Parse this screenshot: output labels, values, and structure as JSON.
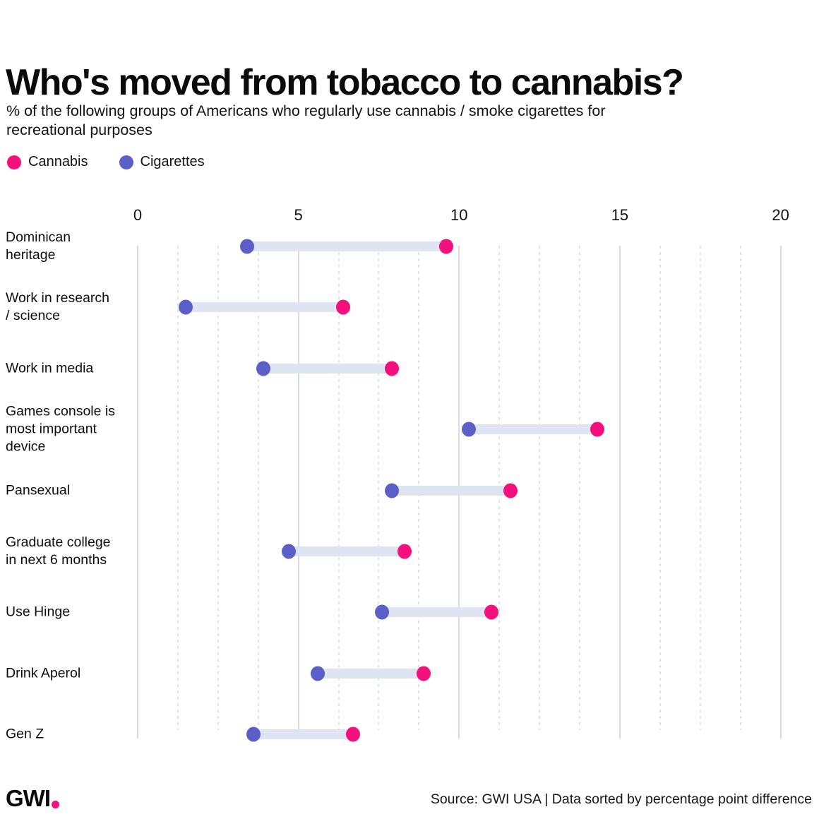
{
  "title": "Who's moved from tobacco to cannabis?",
  "subtitle": "% of the following groups of Americans who regularly use cannabis / smoke cigarettes for\nrecreational purposes",
  "legend": [
    {
      "label": "Cannabis",
      "color": "#f5107e"
    },
    {
      "label": "Cigarettes",
      "color": "#5a60c8"
    }
  ],
  "footer": {
    "logo_text": "GWI",
    "source_text": "Source: GWI USA | Data sorted by percentage point difference"
  },
  "colors": {
    "cannabis": "#f5107e",
    "cigarettes": "#5a60c8",
    "connector_bar": "#dfe4f3",
    "grid_major": "#d6daea",
    "grid_minor": "#dfe3f1",
    "text": "#0c0c0e"
  },
  "chart_data": {
    "type": "dumbbell",
    "orientation": "horizontal",
    "title": "Who's moved from tobacco to cannabis?",
    "xlabel": "",
    "ylabel": "",
    "x_axis": {
      "min": 0,
      "max": 20,
      "ticks": [
        0,
        5,
        10,
        15,
        20
      ],
      "minor_tick_step": 1.25,
      "minor_grid_dashed": true
    },
    "legend_position": "top-left",
    "categories": [
      "Dominican\nheritage",
      "Work in research\n/ science",
      "Work in media",
      "Games console is\nmost important\ndevice",
      "Pansexual",
      "Graduate college\nin next 6 months",
      "Use Hinge",
      "Drink Aperol",
      "Gen Z"
    ],
    "series": [
      {
        "name": "Cannabis",
        "color": "#f5107e",
        "values": [
          9.6,
          6.4,
          7.9,
          14.3,
          11.6,
          8.3,
          11.0,
          8.9,
          6.7
        ]
      },
      {
        "name": "Cigarettes",
        "color": "#5a60c8",
        "values": [
          3.4,
          1.5,
          3.9,
          10.3,
          7.9,
          4.7,
          7.6,
          5.6,
          3.6
        ]
      }
    ]
  }
}
